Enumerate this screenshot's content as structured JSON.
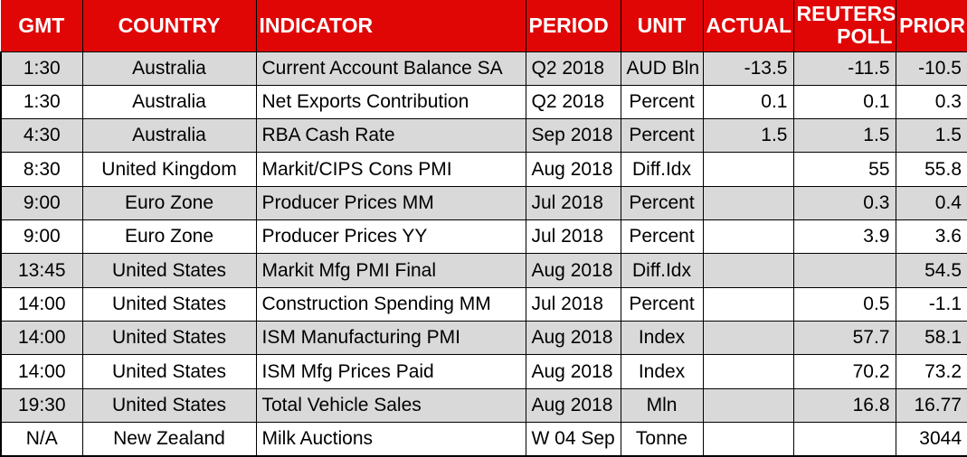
{
  "chart_data": {
    "type": "table",
    "columns": [
      "GMT",
      "COUNTRY",
      "INDICATOR",
      "PERIOD",
      "UNIT",
      "ACTUAL",
      "REUTERS POLL",
      "PRIOR"
    ],
    "rows": [
      [
        "1:30",
        "Australia",
        "Current Account Balance SA",
        "Q2 2018",
        "AUD Bln",
        "-13.5",
        "-11.5",
        "-10.5"
      ],
      [
        "1:30",
        "Australia",
        "Net Exports Contribution",
        "Q2 2018",
        "Percent",
        "0.1",
        "0.1",
        "0.3"
      ],
      [
        "4:30",
        "Australia",
        "RBA Cash Rate",
        "Sep 2018",
        "Percent",
        "1.5",
        "1.5",
        "1.5"
      ],
      [
        "8:30",
        "United Kingdom",
        "Markit/CIPS Cons PMI",
        "Aug 2018",
        "Diff.Idx",
        "",
        "55",
        "55.8"
      ],
      [
        "9:00",
        "Euro Zone",
        "Producer Prices MM",
        "Jul 2018",
        "Percent",
        "",
        "0.3",
        "0.4"
      ],
      [
        "9:00",
        "Euro Zone",
        "Producer Prices YY",
        "Jul 2018",
        "Percent",
        "",
        "3.9",
        "3.6"
      ],
      [
        "13:45",
        "United States",
        "Markit Mfg PMI Final",
        "Aug 2018",
        "Diff.Idx",
        "",
        "",
        "54.5"
      ],
      [
        "14:00",
        "United States",
        "Construction Spending MM",
        "Jul 2018",
        "Percent",
        "",
        "0.5",
        "-1.1"
      ],
      [
        "14:00",
        "United States",
        "ISM Manufacturing PMI",
        "Aug 2018",
        "Index",
        "",
        "57.7",
        "58.1"
      ],
      [
        "14:00",
        "United States",
        "ISM Mfg Prices Paid",
        "Aug 2018",
        "Index",
        "",
        "70.2",
        "73.2"
      ],
      [
        "19:30",
        "United States",
        "Total Vehicle Sales",
        "Aug 2018",
        "Mln",
        "",
        "16.8",
        "16.77"
      ],
      [
        "N/A",
        "New Zealand",
        "Milk Auctions",
        "W 04 Sep",
        "Tonne",
        "",
        "",
        "3044"
      ]
    ]
  },
  "colors": {
    "header_bg": "#e00606",
    "header_text": "#ffffff",
    "stripe_row_bg": "#d9d9d9",
    "row_bg": "#ffffff",
    "border": "#000000",
    "text": "#000000"
  }
}
